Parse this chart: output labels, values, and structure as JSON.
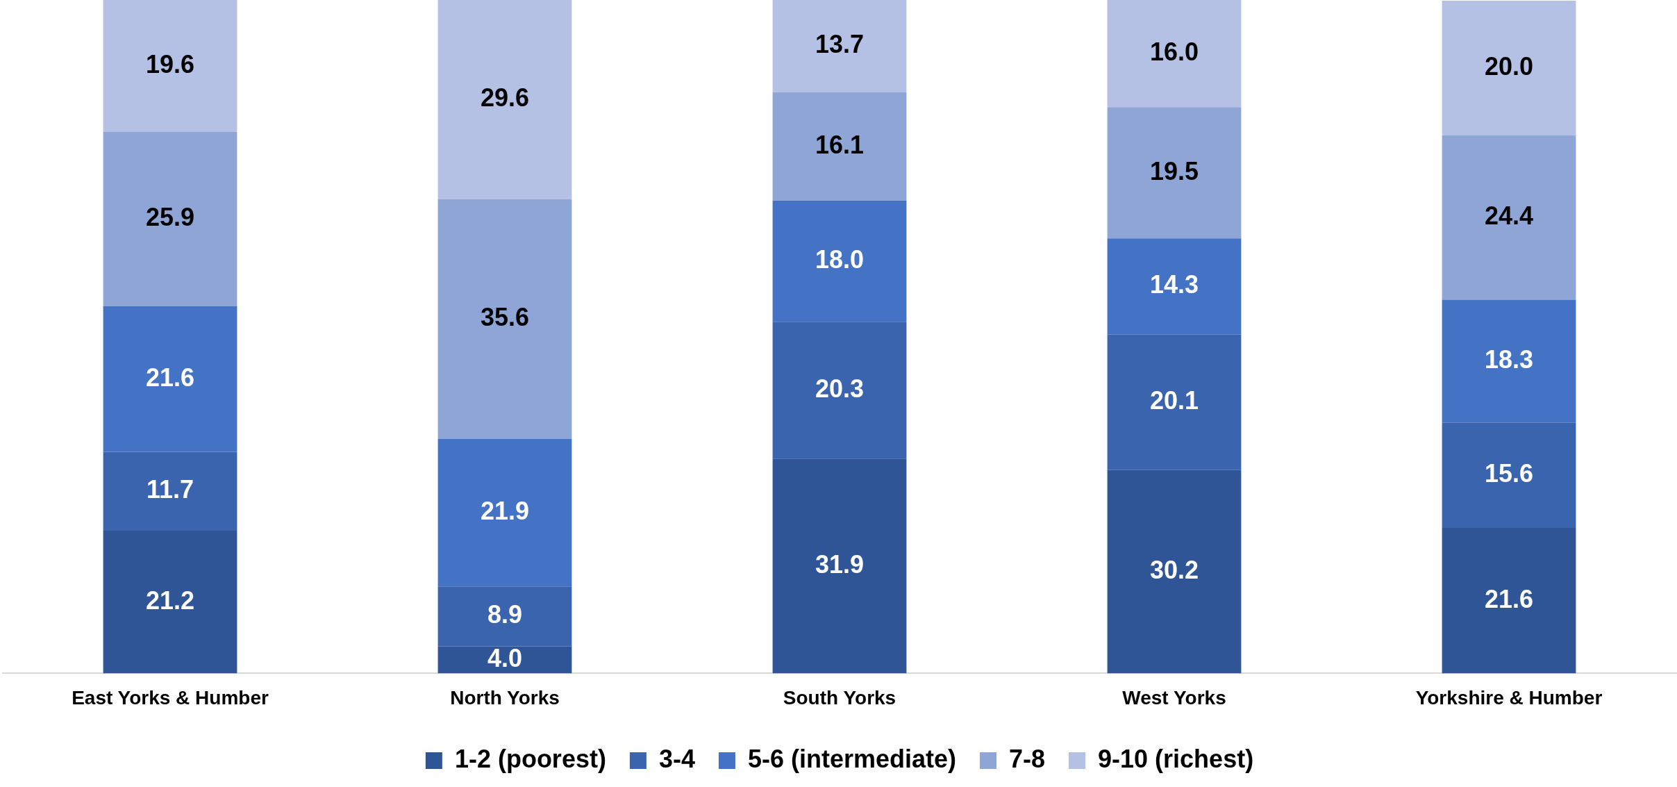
{
  "chart_data": {
    "type": "bar",
    "stacked": true,
    "categories": [
      "East Yorks & Humber",
      "North Yorks",
      "South Yorks",
      "West Yorks",
      "Yorkshire & Humber"
    ],
    "series": [
      {
        "name": "1-2 (poorest)",
        "color": "#2f5597",
        "values": [
          21.2,
          4.0,
          31.9,
          30.2,
          21.6
        ],
        "value_labels": [
          "21.2",
          "4.0",
          "31.9",
          "30.2",
          "21.6"
        ]
      },
      {
        "name": "3-4",
        "color": "#3a64ad",
        "values": [
          11.7,
          8.9,
          20.3,
          20.1,
          15.6
        ],
        "value_labels": [
          "11.7",
          "8.9",
          "20.3",
          "20.1",
          "15.6"
        ]
      },
      {
        "name": "5-6 (intermediate)",
        "color": "#4472c4",
        "values": [
          21.6,
          21.9,
          18.0,
          14.3,
          18.3
        ],
        "value_labels": [
          "21.6",
          "21.9",
          "18.0",
          "14.3",
          "18.3"
        ]
      },
      {
        "name": "7-8",
        "color": "#8ea5d6",
        "values": [
          25.9,
          35.6,
          16.1,
          19.5,
          24.4
        ],
        "value_labels": [
          "25.9",
          "35.6",
          "16.1",
          "19.5",
          "24.4"
        ]
      },
      {
        "name": "9-10 (richest)",
        "color": "#b4c0e4",
        "values": [
          19.6,
          29.6,
          13.7,
          16.0,
          20.0
        ],
        "value_labels": [
          "19.6",
          "29.6",
          "13.7",
          "16.0",
          "20.0"
        ]
      }
    ],
    "ylim": [
      0,
      100
    ],
    "legend": "bottom",
    "grid": false,
    "tick_labels": "x"
  }
}
